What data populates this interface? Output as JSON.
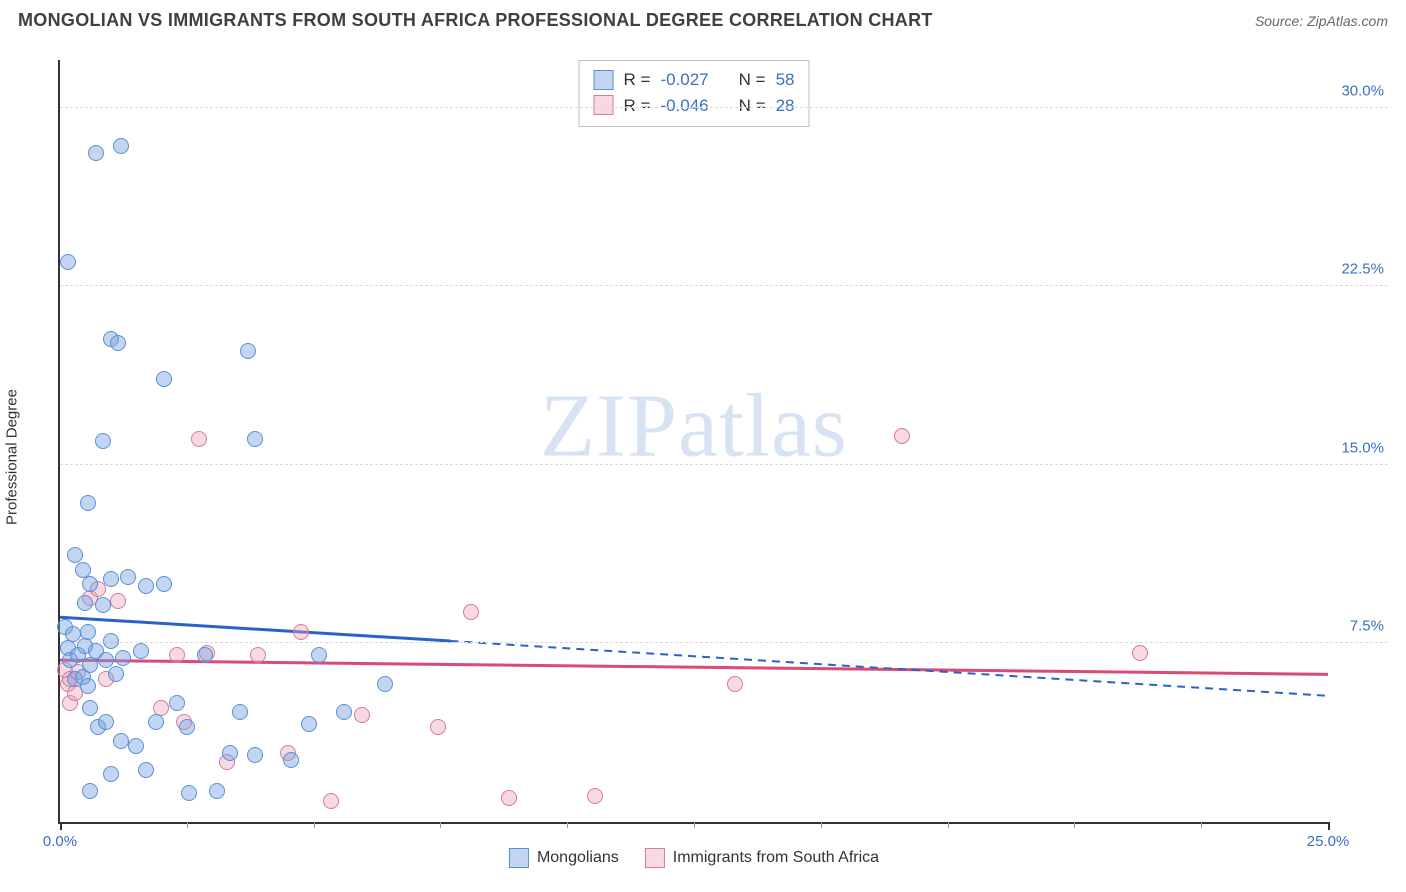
{
  "header": {
    "title": "MONGOLIAN VS IMMIGRANTS FROM SOUTH AFRICA PROFESSIONAL DEGREE CORRELATION CHART",
    "source_prefix": "Source: ",
    "source_name": "ZipAtlas.com"
  },
  "watermark": {
    "zip": "ZIP",
    "atlas": "atlas"
  },
  "axes": {
    "ylabel": "Professional Degree",
    "xlim": [
      0,
      25
    ],
    "ylim": [
      0,
      32
    ],
    "yticks": [
      {
        "v": 7.5,
        "label": "7.5%"
      },
      {
        "v": 15.0,
        "label": "15.0%"
      },
      {
        "v": 22.5,
        "label": "22.5%"
      },
      {
        "v": 30.0,
        "label": "30.0%"
      }
    ],
    "xticks_major": [
      0,
      25
    ],
    "xticks_minor_step": 2.5,
    "xtick_labels": [
      {
        "v": 0,
        "label": "0.0%"
      },
      {
        "v": 25,
        "label": "25.0%"
      }
    ]
  },
  "colors": {
    "blue_fill": "#78a5e0",
    "blue_stroke": "#5a8fd6",
    "blue_trend": "#2a62c9",
    "pink_fill": "#eba0b9",
    "pink_stroke": "#d67a9c",
    "pink_trend": "#d94a76",
    "grid": "#dcdcdc",
    "axis": "#333333",
    "tick_text": "#3b6fc4"
  },
  "stats": {
    "rows": [
      {
        "series": "b",
        "R_label": "R =",
        "R_val": "-0.027",
        "N_label": "N =",
        "N_val": "58"
      },
      {
        "series": "p",
        "R_label": "R =",
        "R_val": "-0.046",
        "N_label": "N =",
        "N_val": "28"
      }
    ]
  },
  "bottom_legend": {
    "items": [
      {
        "series": "b",
        "label": "Mongolians"
      },
      {
        "series": "p",
        "label": "Immigrants from South Africa"
      }
    ]
  },
  "trend_lines": {
    "blue": {
      "solid": {
        "x1": 0,
        "y1": 8.6,
        "x2": 7.7,
        "y2": 7.6
      },
      "dash": {
        "x1": 7.7,
        "y1": 7.6,
        "x2": 25,
        "y2": 5.3
      },
      "width": 3
    },
    "pink": {
      "solid": {
        "x1": 0,
        "y1": 6.8,
        "x2": 25,
        "y2": 6.2
      },
      "width": 3
    }
  },
  "series": {
    "blue": [
      [
        0.15,
        23.5
      ],
      [
        0.55,
        8.0
      ],
      [
        0.7,
        28.1
      ],
      [
        1.0,
        20.3
      ],
      [
        1.2,
        28.4
      ],
      [
        1.15,
        20.1
      ],
      [
        0.55,
        13.4
      ],
      [
        0.85,
        16.0
      ],
      [
        1.0,
        10.2
      ],
      [
        2.05,
        18.6
      ],
      [
        3.7,
        19.8
      ],
      [
        3.85,
        16.1
      ],
      [
        0.3,
        11.2
      ],
      [
        0.45,
        10.6
      ],
      [
        0.5,
        9.2
      ],
      [
        0.6,
        10.0
      ],
      [
        0.85,
        9.1
      ],
      [
        1.35,
        10.3
      ],
      [
        1.7,
        9.9
      ],
      [
        2.05,
        10.0
      ],
      [
        0.1,
        8.2
      ],
      [
        0.15,
        7.3
      ],
      [
        0.2,
        6.8
      ],
      [
        0.25,
        7.9
      ],
      [
        0.3,
        6.0
      ],
      [
        0.35,
        7.0
      ],
      [
        0.45,
        6.1
      ],
      [
        0.5,
        7.4
      ],
      [
        0.55,
        5.7
      ],
      [
        0.6,
        6.6
      ],
      [
        0.7,
        7.2
      ],
      [
        0.9,
        6.8
      ],
      [
        1.0,
        7.6
      ],
      [
        1.1,
        6.2
      ],
      [
        1.25,
        6.9
      ],
      [
        1.6,
        7.2
      ],
      [
        0.6,
        4.8
      ],
      [
        0.75,
        4.0
      ],
      [
        0.9,
        4.2
      ],
      [
        1.2,
        3.4
      ],
      [
        1.5,
        3.2
      ],
      [
        1.9,
        4.2
      ],
      [
        2.3,
        5.0
      ],
      [
        2.5,
        4.0
      ],
      [
        2.85,
        7.0
      ],
      [
        3.35,
        2.9
      ],
      [
        3.55,
        4.6
      ],
      [
        3.85,
        2.8
      ],
      [
        4.55,
        2.6
      ],
      [
        4.9,
        4.1
      ],
      [
        5.6,
        4.6
      ],
      [
        6.4,
        5.8
      ],
      [
        5.1,
        7.0
      ],
      [
        1.0,
        2.0
      ],
      [
        0.6,
        1.3
      ],
      [
        2.55,
        1.2
      ],
      [
        3.1,
        1.3
      ],
      [
        1.7,
        2.2
      ]
    ],
    "pink": [
      [
        0.1,
        6.4
      ],
      [
        0.15,
        5.8
      ],
      [
        0.2,
        6.0
      ],
      [
        0.35,
        6.3
      ],
      [
        0.6,
        9.4
      ],
      [
        0.75,
        9.8
      ],
      [
        1.15,
        9.3
      ],
      [
        2.75,
        16.1
      ],
      [
        2.3,
        7.0
      ],
      [
        2.9,
        7.1
      ],
      [
        2.0,
        4.8
      ],
      [
        2.45,
        4.2
      ],
      [
        3.3,
        2.5
      ],
      [
        3.9,
        7.0
      ],
      [
        4.75,
        8.0
      ],
      [
        4.5,
        2.9
      ],
      [
        5.35,
        0.9
      ],
      [
        5.95,
        4.5
      ],
      [
        7.45,
        4.0
      ],
      [
        8.1,
        8.8
      ],
      [
        8.85,
        1.0
      ],
      [
        10.55,
        1.1
      ],
      [
        13.3,
        5.8
      ],
      [
        16.6,
        16.2
      ],
      [
        21.3,
        7.1
      ],
      [
        0.2,
        5.0
      ],
      [
        0.3,
        5.4
      ],
      [
        0.9,
        6.0
      ]
    ]
  }
}
